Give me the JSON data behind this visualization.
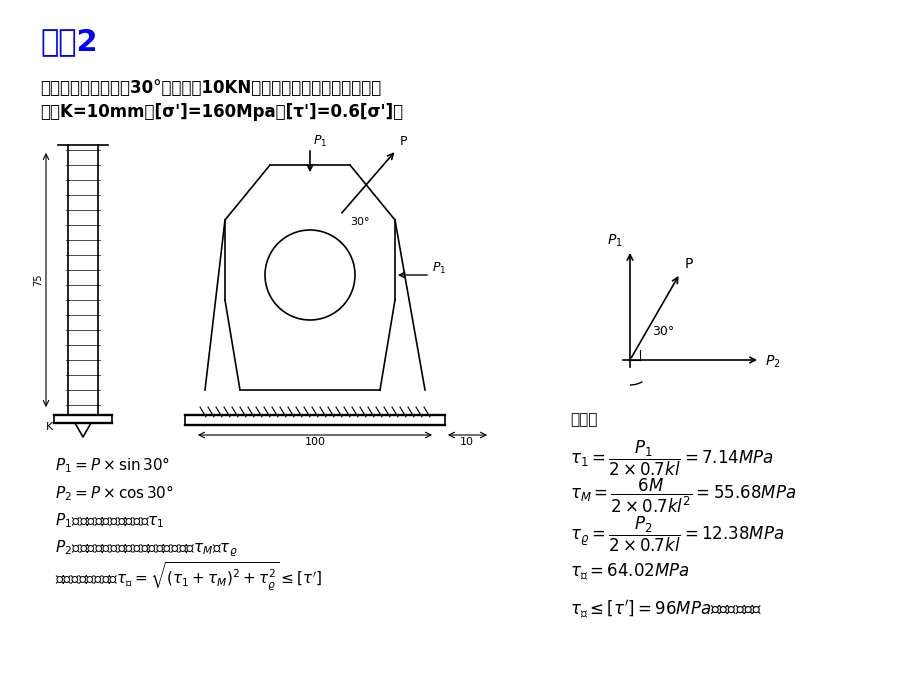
{
  "title": "例题2",
  "title_color": "#0000FF",
  "title_fontsize": 22,
  "bg_color": "#FFFFFF",
  "problem_text_line1": "如图所示吊耳，若在30°斜上方有10KN的载荷，试校验焊缝是否安全",
  "problem_text_line2": "？（K=10mm，[σ']=160Mpa，[τ']=0.6[σ']）",
  "equations_left": [
    "$P_1 = P\\times\\sin 30°$",
    "$P_2 = P\\times\\cos 30°$",
    "$P_1$对焊缝产生的切应力为$\\tau_1$",
    "$P_2$偏心载荷对焊缝产生的切应力分别为$\\tau_M$和$\\tau_\\varrho$",
    "根据受力分析得：$\\tau_{合} = \\sqrt{(\\tau_1 + \\tau_M)^2 + \\tau_\\varrho^2} \\leq [\\tau']$"
  ],
  "qizhong_text": "其中：",
  "equations_right": [
    "$\\tau_1= \\dfrac{P_1}{2\\times0.7kl} = 7.14MPa$",
    "$\\tau_M = \\dfrac{6M}{2\\times0.7kl^2} = 55.68MPa$",
    "$\\tau_\\varrho = \\dfrac{P_2}{2\\times0.7kl} = 12.38MPa$",
    "$\\tau_{合} = 64.02MPa$",
    "$\\tau_{合} \\leq [\\tau'] = 96MPa$，所以安全。"
  ]
}
